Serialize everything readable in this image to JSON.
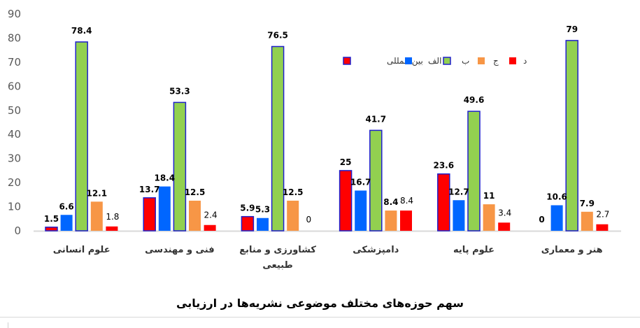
{
  "chart_data": {
    "type": "bar",
    "title": "سهم حوزه‌های مختلف موضوعی نشریه‌ها در ارزیابی",
    "xlabel": "",
    "ylabel": "",
    "ylim": [
      0,
      90
    ],
    "yticks": [
      0,
      10,
      20,
      30,
      40,
      50,
      60,
      70,
      80,
      90
    ],
    "grid": false,
    "legend_position": "top-right (inside plot)",
    "categories": [
      "علوم انسانی",
      "فنی و مهندسی",
      "کشاورزی و منابع طبیعی",
      "دامپزشکی",
      "علوم پایه",
      "هنر و معماری"
    ],
    "category_lines": [
      [
        "علوم انسانی"
      ],
      [
        "فنی و مهندسی"
      ],
      [
        "کشاورزی و منابع",
        "طبیعی"
      ],
      [
        "دامپزشکی"
      ],
      [
        "علوم پایه"
      ],
      [
        "هنر و معماری"
      ]
    ],
    "series": [
      {
        "name": "بین المللی",
        "color": "#FF0000",
        "border": "#1F1FCC",
        "label_bold": true,
        "values": [
          1.5,
          13.7,
          5.9,
          25,
          23.6,
          0
        ]
      },
      {
        "name": "الف",
        "color": "#0066FF",
        "border": null,
        "label_bold": true,
        "values": [
          6.6,
          18.4,
          5.3,
          16.7,
          12.7,
          10.6
        ]
      },
      {
        "name": "ب",
        "color": "#92D050",
        "border": "#1F1FCC",
        "label_bold": true,
        "values": [
          78.4,
          53.3,
          76.5,
          41.7,
          49.6,
          79
        ]
      },
      {
        "name": "ج",
        "color": "#F79646",
        "border": null,
        "label_bold": true,
        "values": [
          12.1,
          12.5,
          12.5,
          8.4,
          11,
          7.9
        ]
      },
      {
        "name": "د",
        "color": "#FF0000",
        "border": null,
        "label_bold": false,
        "values": [
          1.8,
          2.4,
          0,
          8.4,
          3.4,
          2.7
        ]
      }
    ]
  },
  "caption": "سهم حوزه‌های مختلف موضوعی نشریه‌ها در ارزیابی"
}
